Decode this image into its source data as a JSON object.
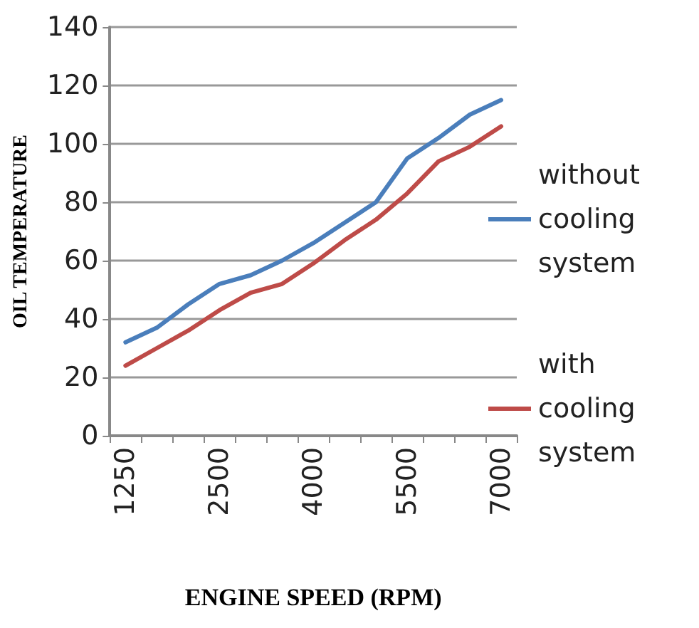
{
  "chart_data": {
    "type": "line",
    "xlabel": "ENGINE SPEED (RPM)",
    "ylabel": "OIL TEMPERATURE",
    "categories": [
      "1250",
      null,
      null,
      "2500",
      null,
      null,
      "4000",
      null,
      null,
      "5500",
      null,
      null,
      "7000"
    ],
    "series": [
      {
        "name": "without cooling system",
        "color": "#4a7ebb",
        "values": [
          32,
          37,
          45,
          52,
          55,
          60,
          66,
          73,
          80,
          95,
          102,
          110,
          115
        ]
      },
      {
        "name": "with cooling system",
        "color": "#be4b48",
        "values": [
          24,
          30,
          36,
          43,
          49,
          52,
          59,
          67,
          74,
          83,
          94,
          99,
          106
        ]
      }
    ],
    "ylim": [
      0,
      140
    ],
    "yticks": [
      0,
      20,
      40,
      60,
      80,
      100,
      120,
      140
    ],
    "grid": "y",
    "legend": "right",
    "marker": "none",
    "line_style": "solid"
  }
}
